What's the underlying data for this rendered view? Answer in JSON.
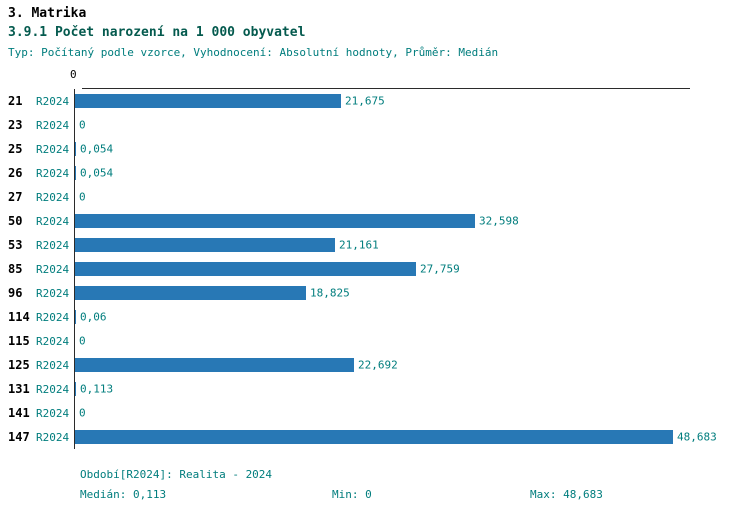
{
  "page": {
    "title": "3. Matrika",
    "subtitle": "3.9.1 Počet narození na 1 000 obyvatel",
    "meta": "Typ: Počítaný podle vzorce, Vyhodnocení: Absolutní hodnoty, Průměr: Medián"
  },
  "colors": {
    "bar": "#2878b5",
    "teal_text": "#007d7d",
    "axis": "#2b2b2b"
  },
  "chart_data": {
    "type": "bar",
    "orientation": "horizontal",
    "title": "3.9.1 Počet narození na 1 000 obyvatel",
    "series_label": "R2024",
    "axis_zero_label": "0",
    "categories": [
      "21",
      "23",
      "25",
      "26",
      "27",
      "50",
      "53",
      "85",
      "96",
      "114",
      "115",
      "125",
      "131",
      "141",
      "147"
    ],
    "values": [
      21.675,
      0,
      0.054,
      0.054,
      0,
      32.598,
      21.161,
      27.759,
      18.825,
      0.06,
      0,
      22.692,
      0.113,
      0,
      48.683
    ],
    "value_labels": [
      "21,675",
      "0",
      "0,054",
      "0,054",
      "0",
      "32,598",
      "21,161",
      "27,759",
      "18,825",
      "0,06",
      "0",
      "22,692",
      "0,113",
      "0",
      "48,683"
    ],
    "xlim": [
      0,
      49.5
    ],
    "grid": false,
    "legend_position": "none"
  },
  "footer": {
    "period": "Období[R2024]: Realita - 2024",
    "median": "Medián: 0,113",
    "min": "Min: 0",
    "max": "Max: 48,683"
  }
}
